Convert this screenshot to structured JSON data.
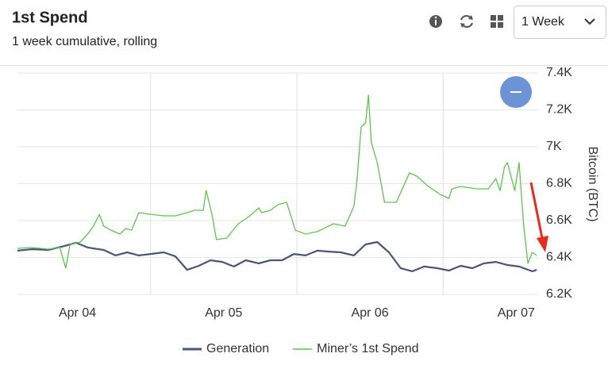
{
  "header": {
    "title": "1st Spend",
    "subtitle": "1 week cumulative, rolling",
    "range_select": "1 Week"
  },
  "chart_data": {
    "type": "line",
    "ylabel": "Bitcoin (BTC)",
    "xlim": [
      3.59,
      7.15
    ],
    "xticks": [
      {
        "value": 4,
        "label": "Apr 04"
      },
      {
        "value": 5,
        "label": "Apr 05"
      },
      {
        "value": 6,
        "label": "Apr 06"
      },
      {
        "value": 7,
        "label": "Apr 07"
      }
    ],
    "ylim": [
      6200,
      7400
    ],
    "yticks": [
      {
        "value": 6200,
        "label": "6.2K"
      },
      {
        "value": 6400,
        "label": "6.4K"
      },
      {
        "value": 6600,
        "label": "6.6K"
      },
      {
        "value": 6800,
        "label": "6.8K"
      },
      {
        "value": 7000,
        "label": "7K"
      },
      {
        "value": 7200,
        "label": "7.2K"
      },
      {
        "value": 7400,
        "label": "7.4K"
      }
    ],
    "grid": true,
    "legend": "bottom",
    "series": [
      {
        "name": "Generation",
        "color": "#4a5677",
        "x": [
          3.59,
          3.69,
          3.8,
          3.91,
          3.99,
          4.07,
          4.18,
          4.26,
          4.34,
          4.42,
          4.5,
          4.59,
          4.67,
          4.75,
          4.83,
          4.91,
          4.99,
          5.07,
          5.15,
          5.24,
          5.32,
          5.4,
          5.48,
          5.56,
          5.64,
          5.72,
          5.8,
          5.89,
          5.97,
          6.05,
          6.13,
          6.21,
          6.29,
          6.37,
          6.46,
          6.54,
          6.62,
          6.7,
          6.78,
          6.86,
          6.94,
          7.02,
          7.11,
          7.14
        ],
        "values": [
          6437,
          6445,
          6441,
          6462,
          6480,
          6454,
          6441,
          6411,
          6428,
          6411,
          6419,
          6428,
          6406,
          6333,
          6355,
          6385,
          6376,
          6351,
          6385,
          6368,
          6385,
          6385,
          6419,
          6411,
          6437,
          6432,
          6428,
          6411,
          6471,
          6484,
          6428,
          6342,
          6325,
          6351,
          6342,
          6329,
          6355,
          6342,
          6368,
          6376,
          6359,
          6351,
          6325,
          6333
        ]
      },
      {
        "name": "Miner’s 1st Spend",
        "color": "#5cc64a",
        "x": [
          3.59,
          3.69,
          3.8,
          3.88,
          3.92,
          3.95,
          4.02,
          4.07,
          4.11,
          4.15,
          4.18,
          4.23,
          4.29,
          4.33,
          4.37,
          4.42,
          4.5,
          4.59,
          4.67,
          4.75,
          4.8,
          4.86,
          4.88,
          4.92,
          4.95,
          5.02,
          5.1,
          5.18,
          5.24,
          5.26,
          5.32,
          5.37,
          5.43,
          5.49,
          5.56,
          5.64,
          5.75,
          5.83,
          5.89,
          5.91,
          5.94,
          5.97,
          5.99,
          6.01,
          6.05,
          6.1,
          6.18,
          6.27,
          6.32,
          6.4,
          6.48,
          6.54,
          6.56,
          6.62,
          6.73,
          6.81,
          6.86,
          6.89,
          6.92,
          6.94,
          6.99,
          7.02,
          7.05,
          7.08,
          7.11,
          7.14
        ],
        "values": [
          6450,
          6454,
          6445,
          6454,
          6342,
          6471,
          6484,
          6527,
          6570,
          6634,
          6570,
          6548,
          6527,
          6557,
          6548,
          6643,
          6634,
          6626,
          6626,
          6643,
          6656,
          6656,
          6763,
          6634,
          6497,
          6505,
          6583,
          6626,
          6669,
          6643,
          6656,
          6686,
          6699,
          6548,
          6527,
          6540,
          6583,
          6570,
          6677,
          6806,
          7107,
          7129,
          7280,
          7021,
          6914,
          6699,
          6699,
          6858,
          6841,
          6785,
          6742,
          6720,
          6772,
          6785,
          6772,
          6772,
          6828,
          6763,
          6892,
          6914,
          6763,
          6914,
          6583,
          6368,
          6428,
          6411
        ]
      }
    ]
  }
}
